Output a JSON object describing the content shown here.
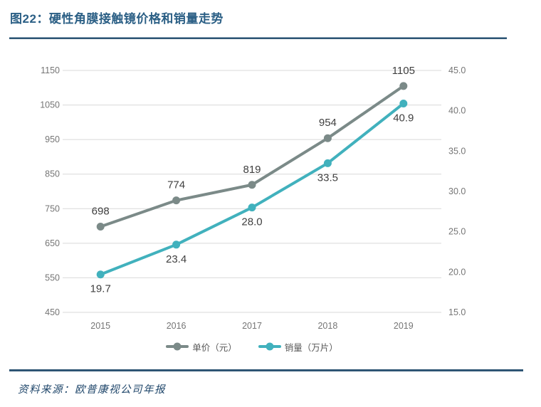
{
  "header": {
    "title": "图22：硬性角膜接触镜价格和销量走势"
  },
  "footer": {
    "source": "资料来源：欧普康视公司年报"
  },
  "colors": {
    "title_text": "#2b5f85",
    "rule": "#2e5574",
    "grid": "#d9d9d9",
    "tick_label": "#757575",
    "data_label": "#404040",
    "legend_text": "#595959",
    "price_series": "#7b8a88",
    "volume_series": "#41b1bd"
  },
  "chart_data": {
    "type": "line",
    "title": "硬性角膜接触镜价格和销量走势",
    "categories": [
      "2015",
      "2016",
      "2017",
      "2018",
      "2019"
    ],
    "series": [
      {
        "name": "单价（元）",
        "axis": "left",
        "color": "#7b8a88",
        "values": [
          698,
          774,
          819,
          954,
          1105
        ],
        "labels": [
          "698",
          "774",
          "819",
          "954",
          "1105"
        ],
        "label_position": "above"
      },
      {
        "name": "销量（万片）",
        "axis": "right",
        "color": "#41b1bd",
        "values": [
          19.7,
          23.4,
          28.0,
          33.5,
          40.9
        ],
        "labels": [
          "19.7",
          "23.4",
          "28.0",
          "33.5",
          "40.9"
        ],
        "label_position": "below"
      }
    ],
    "left_axis": {
      "min": 450,
      "max": 1150,
      "step": 100,
      "ticks": [
        "450",
        "550",
        "650",
        "750",
        "850",
        "950",
        "1050",
        "1150"
      ]
    },
    "right_axis": {
      "min": 15,
      "max": 45,
      "step": 5,
      "ticks": [
        "15.0",
        "20.0",
        "25.0",
        "30.0",
        "35.0",
        "40.0",
        "45.0"
      ]
    },
    "grid": "horizontal",
    "legend_position": "bottom"
  }
}
